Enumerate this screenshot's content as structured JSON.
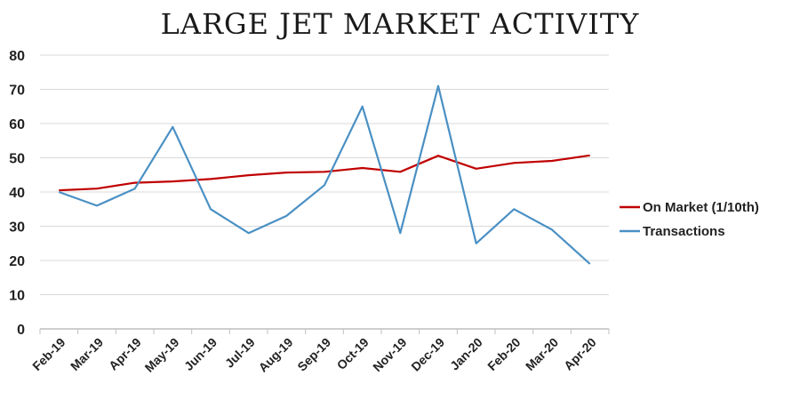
{
  "chart_data": {
    "type": "line",
    "title": "LARGE JET MARKET ACTIVITY",
    "categories": [
      "Feb-19",
      "Mar-19",
      "Apr-19",
      "May-19",
      "Jun-19",
      "Jul-19",
      "Aug-19",
      "Sep-19",
      "Oct-19",
      "Nov-19",
      "Dec-19",
      "Jan-20",
      "Feb-20",
      "Mar-20",
      "Apr-20"
    ],
    "series": [
      {
        "name": "On Market (1/10th)",
        "color": "#c00000",
        "values": [
          40.5,
          41,
          42.7,
          43.1,
          43.8,
          44.9,
          45.7,
          45.9,
          47,
          45.9,
          50.6,
          46.8,
          48.5,
          49.1,
          50.7
        ]
      },
      {
        "name": "Transactions",
        "color": "#4a90c4",
        "values": [
          40,
          36,
          41,
          59,
          35,
          28,
          33,
          42,
          65,
          28,
          71,
          25,
          35,
          29,
          19
        ]
      }
    ],
    "ylim": [
      0,
      80
    ],
    "yticks": [
      0,
      10,
      20,
      30,
      40,
      50,
      60,
      70,
      80
    ],
    "grid": true,
    "legend_position": "right"
  }
}
